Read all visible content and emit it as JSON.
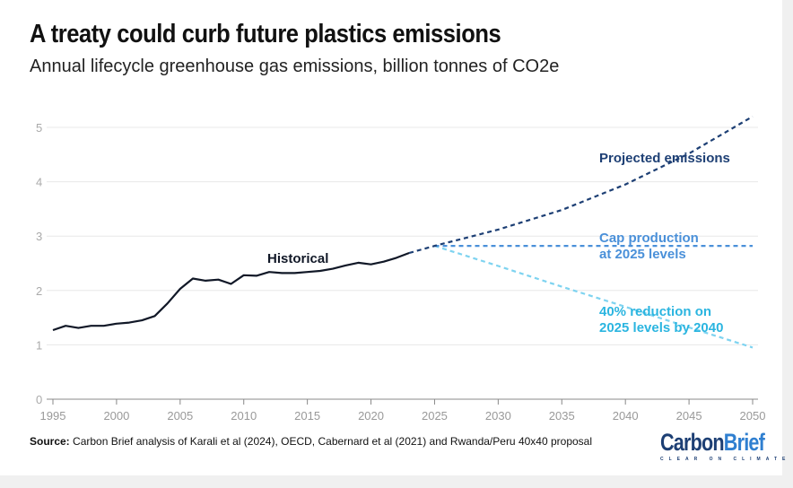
{
  "chart_data": {
    "type": "line",
    "title": "A treaty could curb future plastics emissions",
    "subtitle": "Annual lifecycle greenhouse gas emissions, billion tonnes of CO2e",
    "xlim": [
      1995,
      2050
    ],
    "ylim": [
      0,
      5.3
    ],
    "xticks": [
      1995,
      2000,
      2005,
      2010,
      2015,
      2020,
      2025,
      2030,
      2035,
      2040,
      2045,
      2050
    ],
    "yticks": [
      0,
      1,
      2,
      3,
      4,
      5
    ],
    "grid": true,
    "series": [
      {
        "name": "Historical",
        "color": "#111827",
        "dashed": false,
        "x": [
          1995,
          1996,
          1997,
          1998,
          1999,
          2000,
          2001,
          2002,
          2003,
          2004,
          2005,
          2006,
          2007,
          2008,
          2009,
          2010,
          2011,
          2012,
          2013,
          2014,
          2015,
          2016,
          2017,
          2018,
          2019,
          2020,
          2021,
          2022,
          2023
        ],
        "y": [
          1.27,
          1.35,
          1.31,
          1.35,
          1.35,
          1.39,
          1.41,
          1.45,
          1.53,
          1.76,
          2.03,
          2.22,
          2.18,
          2.2,
          2.12,
          2.28,
          2.27,
          2.34,
          2.32,
          2.32,
          2.34,
          2.36,
          2.4,
          2.46,
          2.51,
          2.48,
          2.53,
          2.6,
          2.69
        ]
      },
      {
        "name": "Projected emissions",
        "color": "#1d3f74",
        "dashed": true,
        "x": [
          2023,
          2025,
          2030,
          2035,
          2040,
          2045,
          2050
        ],
        "y": [
          2.69,
          2.82,
          3.12,
          3.48,
          3.95,
          4.52,
          5.2
        ]
      },
      {
        "name": "Cap production at 2025 levels",
        "color": "#4a90d9",
        "dashed": true,
        "x": [
          2025,
          2050
        ],
        "y": [
          2.82,
          2.82
        ]
      },
      {
        "name": "40% reduction on 2025 levels by 2040",
        "color": "#7ed3f0",
        "dashed": true,
        "x": [
          2025,
          2030,
          2035,
          2040,
          2045,
          2050
        ],
        "y": [
          2.82,
          2.45,
          2.07,
          1.7,
          1.32,
          0.95
        ]
      }
    ],
    "annotations": [
      {
        "text": "Historical",
        "color": "#111827"
      },
      {
        "lines": [
          "Projected emissions"
        ],
        "color": "#1d3f74"
      },
      {
        "lines": [
          "Cap production",
          "at 2025 levels"
        ],
        "color": "#4a90d9"
      },
      {
        "lines": [
          "40% reduction on",
          "2025 levels by 2040"
        ],
        "color": "#2bb5e0"
      }
    ]
  },
  "source_label": "Source:",
  "source_text": " Carbon Brief analysis of Karali et al (2024), OECD, Cabernard et al (2021) and Rwanda/Peru 40x40 proposal",
  "logo": {
    "part1": "Carbon",
    "part2": "Brief",
    "tagline": "CLEAR ON CLIMATE",
    "color1": "#1d3f74",
    "color2": "#2f7fd0"
  }
}
